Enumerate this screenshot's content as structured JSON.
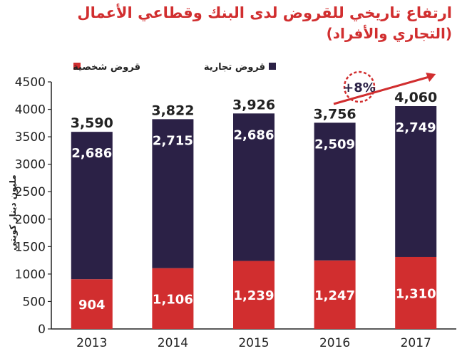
{
  "title": "ارتفاع تاريخي للقروض لدى البنك وقطاعي الأعمال",
  "subtitle": "(التجاري والأفراد)",
  "chart_data": {
    "type": "bar",
    "stacked": true,
    "categories": [
      "2013",
      "2014",
      "2015",
      "2016",
      "2017"
    ],
    "series": [
      {
        "name": "قروض شخصية",
        "color": "#d12e2f",
        "values": [
          904,
          1106,
          1239,
          1247,
          1310
        ]
      },
      {
        "name": "قروض تجارية",
        "color": "#2b2146",
        "values": [
          2686,
          2715,
          2686,
          2509,
          2749
        ]
      }
    ],
    "totals": [
      "3,590",
      "3,822",
      "3,926",
      "3,756",
      "4,060"
    ],
    "value_labels": {
      "personal": [
        "904",
        "1,106",
        "1,239",
        "1,247",
        "1,310"
      ],
      "commercial": [
        "2,686",
        "2,715",
        "2,686",
        "2,509",
        "2,749"
      ]
    },
    "ylabel": "مليون دينار كويتي",
    "ylim": [
      0,
      4500
    ],
    "yticks": [
      "0",
      "500",
      "1000",
      "1500",
      "2000",
      "2500",
      "3000",
      "3500",
      "4000",
      "4500"
    ],
    "legend_position": "top",
    "annotation": "+8%",
    "grid": false
  }
}
